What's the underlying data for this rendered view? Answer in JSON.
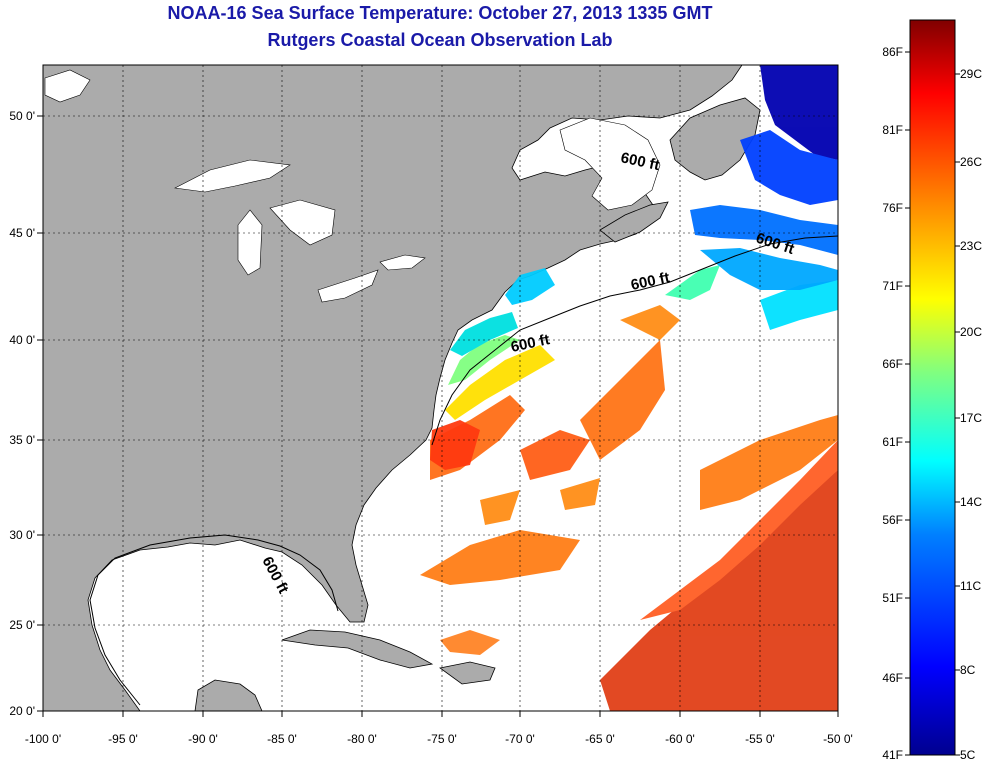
{
  "title": {
    "line1": "NOAA-16 Sea Surface Temperature:  October 27, 2013 1335 GMT",
    "line2": "Rutgers Coastal Ocean Observation Lab"
  },
  "axes": {
    "x_ticks": [
      "-100 0'",
      "-95 0'",
      "-90 0'",
      "-85 0'",
      "-80 0'",
      "-75 0'",
      "-70 0'",
      "-65 0'",
      "-60 0'",
      "-55 0'",
      "-50 0'"
    ],
    "y_ticks": [
      "50 0'",
      "45 0'",
      "40 0'",
      "35 0'",
      "30 0'",
      "25 0'",
      "20 0'"
    ]
  },
  "contour_labels": [
    "600 ft",
    "600 ft",
    "600 ft",
    "600 ft",
    "600 ft"
  ],
  "colorbar": {
    "f_labels": [
      "86F",
      "81F",
      "76F",
      "71F",
      "66F",
      "61F",
      "56F",
      "51F",
      "46F",
      "41F"
    ],
    "c_labels": [
      "29C",
      "26C",
      "23C",
      "20C",
      "17C",
      "14C",
      "11C",
      "8C",
      "5C"
    ],
    "colors": [
      "#00008f",
      "#0000ff",
      "#0080ff",
      "#00ffff",
      "#80ff80",
      "#ffff00",
      "#ff8000",
      "#ff0000",
      "#800000"
    ]
  },
  "colors": {
    "land": "#ababab",
    "ocean": "#ffffff",
    "title": "#1a1aa8"
  }
}
